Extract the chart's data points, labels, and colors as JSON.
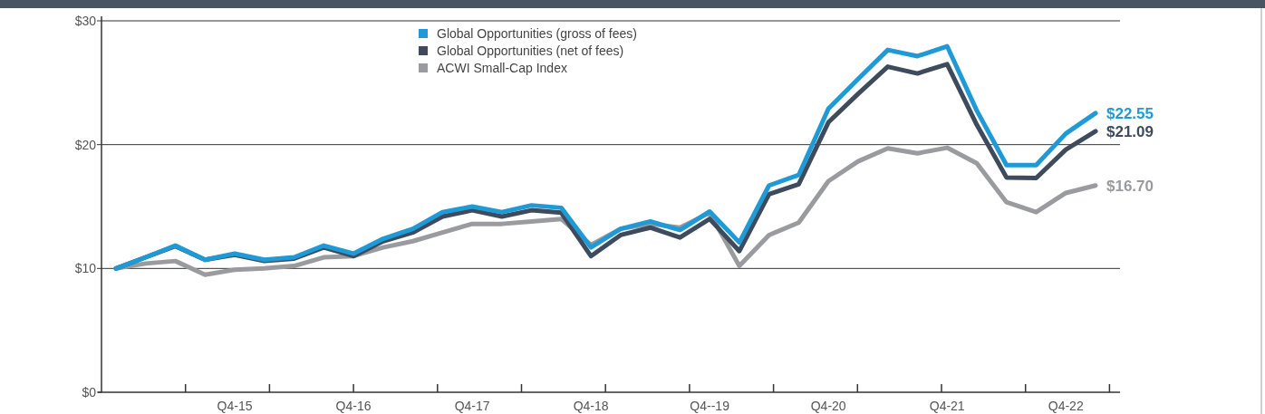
{
  "chart_data": {
    "type": "line",
    "categories": [
      null,
      null,
      null,
      null,
      "Q4-15",
      null,
      null,
      null,
      "Q4-16",
      null,
      null,
      null,
      "Q4-17",
      null,
      null,
      null,
      "Q4-18",
      null,
      null,
      null,
      "Q4--19",
      null,
      null,
      null,
      "Q4-20",
      null,
      null,
      null,
      "Q4-21",
      null,
      null,
      null,
      "Q4-22",
      null
    ],
    "ylim": [
      0,
      30
    ],
    "yticks": [
      {
        "value": 0,
        "label": "$0"
      },
      {
        "value": 10,
        "label": "$10"
      },
      {
        "value": 20,
        "label": "$20"
      },
      {
        "value": 30,
        "label": "$30"
      }
    ],
    "grid": "y",
    "legend": "top",
    "marker": "none",
    "line_style": "solid",
    "series": [
      {
        "name": "ACWI Small-Cap Index",
        "color": "#9a9b9e",
        "values": [
          10.0,
          10.4,
          10.6,
          9.5,
          9.9,
          10.0,
          10.2,
          10.9,
          11.0,
          11.7,
          12.2,
          12.9,
          13.6,
          13.6,
          13.8,
          14.0,
          11.9,
          13.2,
          13.6,
          13.3,
          14.5,
          10.2,
          12.7,
          13.7,
          17.05,
          18.65,
          19.7,
          19.3,
          19.75,
          18.5,
          15.35,
          14.55,
          16.1,
          16.7
        ],
        "value_labels": [
          null,
          null,
          null,
          null,
          null,
          null,
          null,
          null,
          null,
          null,
          null,
          null,
          null,
          null,
          null,
          null,
          null,
          null,
          null,
          null,
          null,
          null,
          null,
          null,
          null,
          null,
          null,
          null,
          null,
          null,
          null,
          null,
          null,
          "$16.70"
        ]
      },
      {
        "name": "Global Opportunities (net of fees)",
        "color": "#3d4b5c",
        "values": [
          10.0,
          10.9,
          11.8,
          10.7,
          11.1,
          10.6,
          10.8,
          11.7,
          11.0,
          12.2,
          12.9,
          14.2,
          14.7,
          14.2,
          14.7,
          14.5,
          11.0,
          12.7,
          13.3,
          12.5,
          14.0,
          11.4,
          16.0,
          16.8,
          21.8,
          24.1,
          26.3,
          25.75,
          26.5,
          21.6,
          17.35,
          17.3,
          19.6,
          21.09
        ],
        "value_labels": [
          null,
          null,
          null,
          null,
          null,
          null,
          null,
          null,
          null,
          null,
          null,
          null,
          null,
          null,
          null,
          null,
          null,
          null,
          null,
          null,
          null,
          null,
          null,
          null,
          null,
          null,
          null,
          null,
          null,
          null,
          null,
          null,
          null,
          "$21.09"
        ]
      },
      {
        "name": "Global Opportunities (gross of fees)",
        "color": "#1f9ad6",
        "values": [
          10.0,
          10.9,
          11.85,
          10.7,
          11.2,
          10.7,
          10.9,
          11.85,
          11.2,
          12.4,
          13.2,
          14.55,
          15.0,
          14.55,
          15.1,
          14.9,
          11.7,
          13.2,
          13.8,
          13.1,
          14.6,
          12.1,
          16.7,
          17.55,
          22.9,
          25.3,
          27.65,
          27.15,
          27.95,
          22.75,
          18.35,
          18.35,
          20.9,
          22.55
        ],
        "value_labels": [
          null,
          null,
          null,
          null,
          null,
          null,
          null,
          null,
          null,
          null,
          null,
          null,
          null,
          null,
          null,
          null,
          null,
          null,
          null,
          null,
          null,
          null,
          null,
          null,
          null,
          null,
          null,
          null,
          null,
          null,
          null,
          null,
          null,
          "$22.55"
        ]
      }
    ]
  }
}
